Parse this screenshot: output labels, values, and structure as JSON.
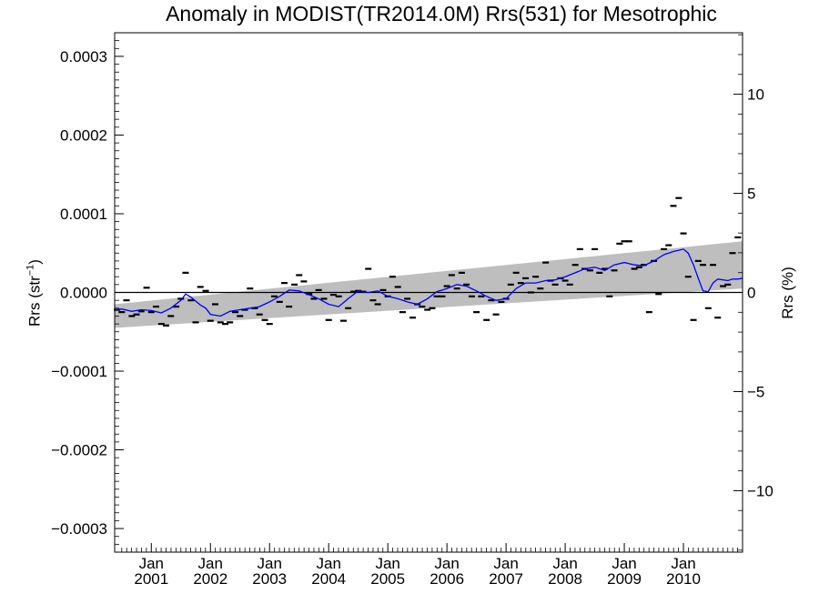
{
  "chart_data": {
    "type": "scatter",
    "title": "Anomaly in MODIST(TR2014.0M) Rrs(531) for Mesotrophic",
    "ylabel": "Rrs (str",
    "ylabel_superscript": "−1",
    "ylabel_suffix": ")",
    "ylabel_right": "Rrs (%)",
    "ylim": [
      -0.00033,
      0.00033
    ],
    "ylim_right": [
      -13.1,
      13.1
    ],
    "xlim": [
      2000.38,
      2011.0
    ],
    "left_ticks": [
      {
        "value": 0.0003,
        "label": "0.0003"
      },
      {
        "value": 0.0002,
        "label": "0.0002"
      },
      {
        "value": 0.0001,
        "label": "0.0001"
      },
      {
        "value": 0.0,
        "label": "0.0000"
      },
      {
        "value": -0.0001,
        "label": "−0.0001"
      },
      {
        "value": -0.0002,
        "label": "−0.0002"
      },
      {
        "value": -0.0003,
        "label": "−0.0003"
      }
    ],
    "right_ticks": [
      {
        "value": 10,
        "label": "10"
      },
      {
        "value": 5,
        "label": "5"
      },
      {
        "value": 0,
        "label": "0"
      },
      {
        "value": -5,
        "label": "−5"
      },
      {
        "value": -10,
        "label": "−10"
      }
    ],
    "x_ticks": [
      {
        "value": 2001.0,
        "month": "Jan",
        "year": "2001"
      },
      {
        "value": 2002.0,
        "month": "Jan",
        "year": "2002"
      },
      {
        "value": 2003.0,
        "month": "Jan",
        "year": "2003"
      },
      {
        "value": 2004.0,
        "month": "Jan",
        "year": "2004"
      },
      {
        "value": 2005.0,
        "month": "Jan",
        "year": "2005"
      },
      {
        "value": 2006.0,
        "month": "Jan",
        "year": "2006"
      },
      {
        "value": 2007.0,
        "month": "Jan",
        "year": "2007"
      },
      {
        "value": 2008.0,
        "month": "Jan",
        "year": "2008"
      },
      {
        "value": 2009.0,
        "month": "Jan",
        "year": "2009"
      },
      {
        "value": 2010.0,
        "month": "Jan",
        "year": "2010"
      }
    ],
    "trend_band": {
      "start_x": 2000.38,
      "end_x": 2011.0,
      "upper_start": -1.5e-05,
      "upper_end": 6.5e-05,
      "lower_start": -4.5e-05,
      "lower_end": 5e-06,
      "color": "#bebebe"
    },
    "monthly_points": [
      [
        2000.42,
        -2.2e-05
      ],
      [
        2000.5,
        -2.5e-05
      ],
      [
        2000.58,
        -1e-05
      ],
      [
        2000.67,
        -3e-05
      ],
      [
        2000.75,
        -2.8e-05
      ],
      [
        2000.83,
        -2.4e-05
      ],
      [
        2000.92,
        6e-06
      ],
      [
        2001.0,
        -2.5e-05
      ],
      [
        2001.08,
        -1.8e-05
      ],
      [
        2001.17,
        -4e-05
      ],
      [
        2001.25,
        -4.2e-05
      ],
      [
        2001.33,
        -3e-05
      ],
      [
        2001.42,
        -1.8e-05
      ],
      [
        2001.5,
        -8e-06
      ],
      [
        2001.58,
        2.5e-05
      ],
      [
        2001.67,
        -1e-05
      ],
      [
        2001.75,
        -3.8e-05
      ],
      [
        2001.83,
        7e-06
      ],
      [
        2001.92,
        2e-06
      ],
      [
        2002.0,
        -3.6e-05
      ],
      [
        2002.08,
        -1.5e-05
      ],
      [
        2002.17,
        -3.8e-05
      ],
      [
        2002.25,
        -4e-05
      ],
      [
        2002.33,
        -3.8e-05
      ],
      [
        2002.42,
        -2.5e-05
      ],
      [
        2002.5,
        -3e-05
      ],
      [
        2002.58,
        -2.2e-05
      ],
      [
        2002.67,
        5e-06
      ],
      [
        2002.75,
        -2e-05
      ],
      [
        2002.83,
        -2.8e-05
      ],
      [
        2002.92,
        -3.5e-05
      ],
      [
        2003.0,
        -4e-05
      ],
      [
        2003.08,
        -5e-06
      ],
      [
        2003.17,
        -1.2e-05
      ],
      [
        2003.25,
        1.2e-05
      ],
      [
        2003.33,
        -1.8e-05
      ],
      [
        2003.42,
        1e-05
      ],
      [
        2003.5,
        2.2e-05
      ],
      [
        2003.58,
        1.4e-05
      ],
      [
        2003.67,
        -2e-06
      ],
      [
        2003.75,
        -8e-06
      ],
      [
        2003.83,
        3e-06
      ],
      [
        2003.92,
        -8e-06
      ],
      [
        2004.0,
        -3.5e-05
      ],
      [
        2004.08,
        -3e-06
      ],
      [
        2004.17,
        -5e-06
      ],
      [
        2004.25,
        -3.6e-05
      ],
      [
        2004.33,
        -2e-05
      ],
      [
        2004.42,
        1e-06
      ],
      [
        2004.5,
        2e-06
      ],
      [
        2004.58,
        1e-06
      ],
      [
        2004.67,
        3e-05
      ],
      [
        2004.75,
        -1e-05
      ],
      [
        2004.83,
        -1.5e-05
      ],
      [
        2004.92,
        3e-06
      ],
      [
        2005.0,
        -5e-06
      ],
      [
        2005.08,
        2e-05
      ],
      [
        2005.17,
        7e-06
      ],
      [
        2005.25,
        -2.5e-05
      ],
      [
        2005.33,
        -8e-06
      ],
      [
        2005.42,
        -3.2e-05
      ],
      [
        2005.5,
        -1.5e-05
      ],
      [
        2005.58,
        -1.8e-05
      ],
      [
        2005.67,
        -2.2e-05
      ],
      [
        2005.75,
        -2e-05
      ],
      [
        2005.83,
        -5e-06
      ],
      [
        2005.92,
        -5e-06
      ],
      [
        2006.0,
        8e-06
      ],
      [
        2006.08,
        2.2e-05
      ],
      [
        2006.17,
        5e-06
      ],
      [
        2006.25,
        2.5e-05
      ],
      [
        2006.33,
        1e-05
      ],
      [
        2006.42,
        -5e-06
      ],
      [
        2006.5,
        -2.5e-05
      ],
      [
        2006.58,
        -5e-06
      ],
      [
        2006.67,
        -3.5e-05
      ],
      [
        2006.75,
        -1e-05
      ],
      [
        2006.83,
        -2.8e-05
      ],
      [
        2006.92,
        -1.2e-05
      ],
      [
        2007.0,
        -8e-06
      ],
      [
        2007.08,
        1e-05
      ],
      [
        2007.17,
        2.5e-05
      ],
      [
        2007.25,
        1.2e-05
      ],
      [
        2007.33,
        1.8e-05
      ],
      [
        2007.42,
        0.0
      ],
      [
        2007.5,
        2e-05
      ],
      [
        2007.58,
        5e-06
      ],
      [
        2007.67,
        3.8e-05
      ],
      [
        2007.75,
        1.5e-05
      ],
      [
        2007.83,
        1e-05
      ],
      [
        2007.92,
        1.8e-05
      ],
      [
        2008.0,
        1.5e-05
      ],
      [
        2008.08,
        1e-05
      ],
      [
        2008.17,
        3.5e-05
      ],
      [
        2008.25,
        5.5e-05
      ],
      [
        2008.33,
        3e-05
      ],
      [
        2008.42,
        2.8e-05
      ],
      [
        2008.5,
        5.5e-05
      ],
      [
        2008.58,
        2.5e-05
      ],
      [
        2008.67,
        3e-05
      ],
      [
        2008.75,
        -5e-06
      ],
      [
        2008.83,
        2.8e-05
      ],
      [
        2008.92,
        6.2e-05
      ],
      [
        2009.0,
        6.5e-05
      ],
      [
        2009.08,
        6.5e-05
      ],
      [
        2009.17,
        3e-05
      ],
      [
        2009.25,
        3.2e-05
      ],
      [
        2009.33,
        3.5e-05
      ],
      [
        2009.42,
        -2.5e-05
      ],
      [
        2009.5,
        4e-05
      ],
      [
        2009.58,
        -2e-06
      ],
      [
        2009.67,
        5.5e-05
      ],
      [
        2009.75,
        6e-05
      ],
      [
        2009.83,
        0.00011
      ],
      [
        2009.92,
        0.00012
      ],
      [
        2010.0,
        7.5e-05
      ],
      [
        2010.08,
        2e-05
      ],
      [
        2010.17,
        -3.5e-05
      ],
      [
        2010.25,
        4e-05
      ],
      [
        2010.33,
        3.5e-05
      ],
      [
        2010.42,
        -2e-05
      ],
      [
        2010.5,
        3.5e-05
      ],
      [
        2010.58,
        -3.2e-05
      ],
      [
        2010.67,
        8e-06
      ],
      [
        2010.75,
        1e-05
      ],
      [
        2010.83,
        5e-05
      ],
      [
        2010.92,
        7e-05
      ]
    ],
    "running_mean": [
      [
        2000.38,
        -2.2e-05
      ],
      [
        2000.5,
        -2.1e-05
      ],
      [
        2000.67,
        -2.4e-05
      ],
      [
        2000.83,
        -2.2e-05
      ],
      [
        2001.0,
        -2.3e-05
      ],
      [
        2001.17,
        -2.6e-05
      ],
      [
        2001.33,
        -2e-05
      ],
      [
        2001.5,
        -1e-05
      ],
      [
        2001.58,
        -2e-06
      ],
      [
        2001.67,
        -6e-06
      ],
      [
        2001.83,
        -1.6e-05
      ],
      [
        2001.92,
        -2e-05
      ],
      [
        2002.0,
        -2.8e-05
      ],
      [
        2002.17,
        -3e-05
      ],
      [
        2002.33,
        -2.4e-05
      ],
      [
        2002.5,
        -2.2e-05
      ],
      [
        2002.67,
        -2e-05
      ],
      [
        2002.83,
        -1.8e-05
      ],
      [
        2003.0,
        -1.2e-05
      ],
      [
        2003.17,
        -5e-06
      ],
      [
        2003.33,
        3e-06
      ],
      [
        2003.5,
        2e-06
      ],
      [
        2003.67,
        -3e-06
      ],
      [
        2003.83,
        -8e-06
      ],
      [
        2004.0,
        -1.5e-05
      ],
      [
        2004.17,
        -1.8e-05
      ],
      [
        2004.33,
        -8e-06
      ],
      [
        2004.5,
        2e-06
      ],
      [
        2004.67,
        0.0
      ],
      [
        2004.83,
        2e-06
      ],
      [
        2005.0,
        -5e-06
      ],
      [
        2005.17,
        -8e-06
      ],
      [
        2005.33,
        -1.2e-05
      ],
      [
        2005.5,
        -1.5e-05
      ],
      [
        2005.67,
        -8e-06
      ],
      [
        2005.83,
        1e-06
      ],
      [
        2006.0,
        5e-06
      ],
      [
        2006.17,
        1e-05
      ],
      [
        2006.33,
        8e-06
      ],
      [
        2006.5,
        2e-06
      ],
      [
        2006.67,
        -5e-06
      ],
      [
        2006.83,
        -1e-05
      ],
      [
        2007.0,
        -8e-06
      ],
      [
        2007.17,
        5e-06
      ],
      [
        2007.33,
        1.2e-05
      ],
      [
        2007.5,
        1.2e-05
      ],
      [
        2007.67,
        1.5e-05
      ],
      [
        2007.83,
        1.6e-05
      ],
      [
        2008.0,
        2e-05
      ],
      [
        2008.17,
        2.5e-05
      ],
      [
        2008.33,
        3e-05
      ],
      [
        2008.5,
        3.2e-05
      ],
      [
        2008.67,
        2.8e-05
      ],
      [
        2008.83,
        3.5e-05
      ],
      [
        2009.0,
        3.8e-05
      ],
      [
        2009.17,
        3.5e-05
      ],
      [
        2009.33,
        3.4e-05
      ],
      [
        2009.5,
        4e-05
      ],
      [
        2009.67,
        4.8e-05
      ],
      [
        2009.83,
        5.2e-05
      ],
      [
        2010.0,
        5.5e-05
      ],
      [
        2010.08,
        5e-05
      ],
      [
        2010.17,
        3.5e-05
      ],
      [
        2010.25,
        1.8e-05
      ],
      [
        2010.33,
        2e-06
      ],
      [
        2010.42,
        1e-06
      ],
      [
        2010.5,
        1.2e-05
      ],
      [
        2010.58,
        1.7e-05
      ],
      [
        2010.67,
        1.6e-05
      ],
      [
        2010.75,
        1.5e-05
      ],
      [
        2010.83,
        1.7e-05
      ],
      [
        2010.92,
        1.7e-05
      ],
      [
        2011.0,
        1.8e-05
      ]
    ],
    "colors": {
      "running_mean": "#0000ff",
      "points": "#000000",
      "zero_line": "#000000"
    },
    "grid": false,
    "legend": "none"
  }
}
